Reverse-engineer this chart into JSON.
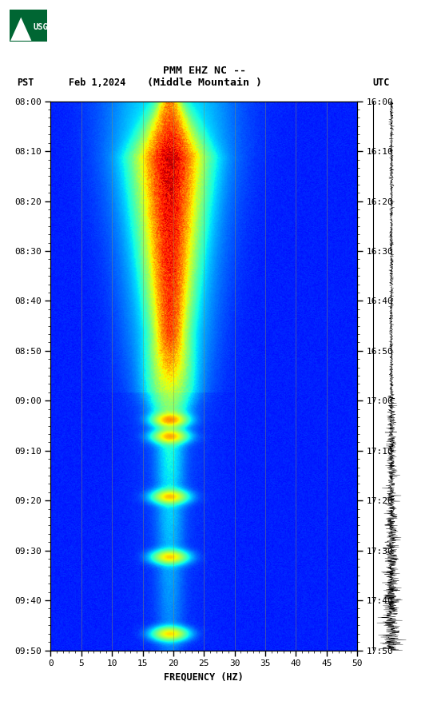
{
  "title_line1": "PMM EHZ NC --",
  "title_line2": "(Middle Mountain )",
  "left_time_label": "PST",
  "right_time_label": "UTC",
  "date_label": "Feb 1,2024",
  "freq_label": "FREQUENCY (HZ)",
  "freq_min": 0,
  "freq_max": 50,
  "freq_ticks": [
    0,
    5,
    10,
    15,
    20,
    25,
    30,
    35,
    40,
    45,
    50
  ],
  "time_ticks_left": [
    "08:00",
    "08:10",
    "08:20",
    "08:30",
    "08:40",
    "08:50",
    "09:00",
    "09:10",
    "09:20",
    "09:30",
    "09:40",
    "09:50"
  ],
  "time_ticks_right": [
    "16:00",
    "16:10",
    "16:20",
    "16:30",
    "16:40",
    "16:50",
    "17:00",
    "17:10",
    "17:20",
    "17:30",
    "17:40",
    "17:50"
  ],
  "fig_bg": "#ffffff",
  "plot_bg": "#000090",
  "spectrogram_peak_freq": 19.5,
  "colormap": "jet",
  "usgs_logo_color": "#006633",
  "grid_color": "#909050",
  "grid_alpha": 0.55,
  "vertical_lines_freq": [
    5,
    10,
    15,
    20,
    25,
    30,
    35,
    40,
    45
  ],
  "n_time_bins": 700,
  "n_freq_bins": 500
}
